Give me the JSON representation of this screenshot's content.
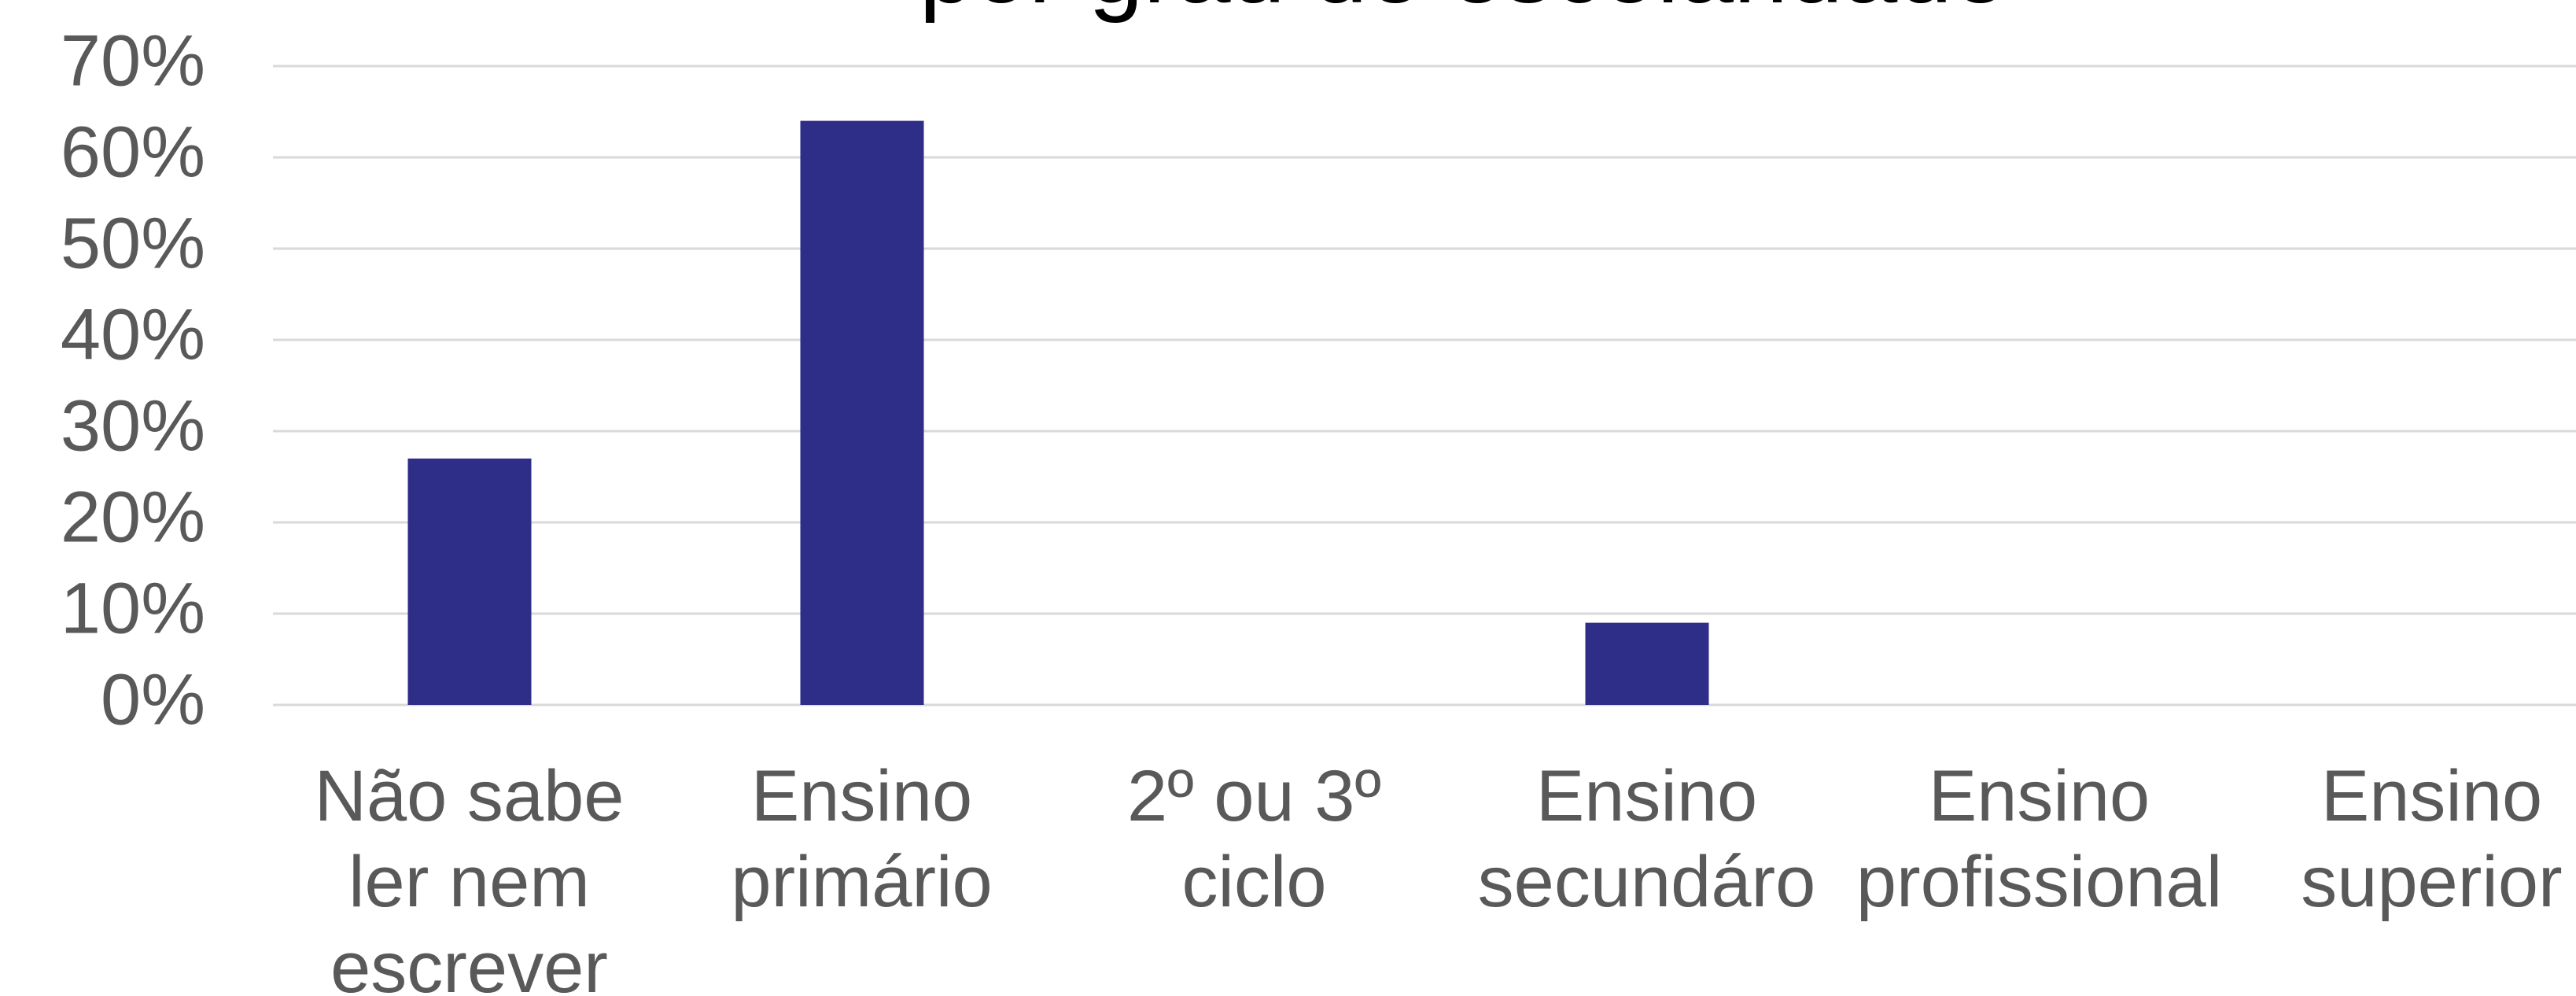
{
  "chart_data": {
    "type": "bar",
    "title": "por grau de escolaridade",
    "categories": [
      "Não sabe ler nem escrever",
      "Ensino primário",
      "2º ou 3º ciclo",
      "Ensino secundáro",
      "Ensino profissional",
      "Ensino superior"
    ],
    "values": [
      27,
      64,
      0,
      9,
      0,
      0
    ],
    "color": "#2e2d88",
    "ylim": [
      0,
      70
    ],
    "yticks": [
      {
        "value": 0,
        "label": "0%"
      },
      {
        "value": 10,
        "label": "10%"
      },
      {
        "value": 20,
        "label": "20%"
      },
      {
        "value": 30,
        "label": "30%"
      },
      {
        "value": 40,
        "label": "40%"
      },
      {
        "value": 50,
        "label": "50%"
      },
      {
        "value": 60,
        "label": "60%"
      },
      {
        "value": 70,
        "label": "70%"
      }
    ],
    "grid": true
  }
}
